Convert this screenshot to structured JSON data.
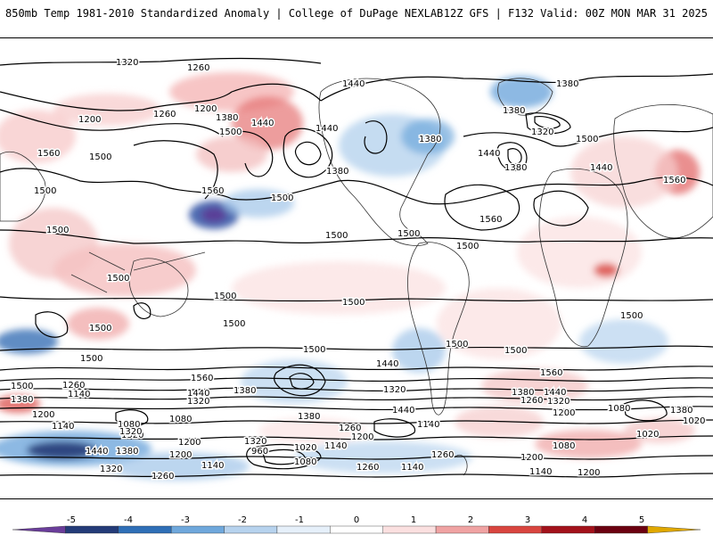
{
  "header": {
    "title_left": "850mb Temp 1981-2010 Standardized Anomaly | College of DuPage NEXLAB",
    "title_right": "12Z GFS | F132 Valid: 00Z MON MAR 31 2025"
  },
  "colorbar": {
    "ticks": [
      "-5",
      "-4",
      "-3",
      "-2",
      "-1",
      "0",
      "1",
      "2",
      "3",
      "4",
      "5"
    ],
    "colors": [
      "#6a3d9a",
      "#243b78",
      "#2f6fb7",
      "#6fa8dc",
      "#b7d3ee",
      "#e6f0fa",
      "#ffffff",
      "#fbe0e0",
      "#f0a3a3",
      "#d9453f",
      "#a3121b",
      "#6b0010",
      "#e0a800"
    ]
  },
  "contour_labels": [
    {
      "text": "1320"
    },
    {
      "text": "1260"
    },
    {
      "text": "1200"
    },
    {
      "text": "1260"
    },
    {
      "text": "1200"
    },
    {
      "text": "1380"
    },
    {
      "text": "1440"
    },
    {
      "text": "1500"
    },
    {
      "text": "1560"
    },
    {
      "text": "1500"
    },
    {
      "text": "1440"
    },
    {
      "text": "1380"
    },
    {
      "text": "1440"
    },
    {
      "text": "1380"
    },
    {
      "text": "1380"
    },
    {
      "text": "1320"
    },
    {
      "text": "1380"
    },
    {
      "text": "1500"
    },
    {
      "text": "1440"
    },
    {
      "text": "1440"
    },
    {
      "text": "1380"
    },
    {
      "text": "1560"
    },
    {
      "text": "1500"
    },
    {
      "text": "1560"
    },
    {
      "text": "1500"
    },
    {
      "text": "1500"
    },
    {
      "text": "1560"
    },
    {
      "text": "1500"
    },
    {
      "text": "1500"
    },
    {
      "text": "1500"
    },
    {
      "text": "1500"
    },
    {
      "text": "1500"
    },
    {
      "text": "1500"
    },
    {
      "text": "1500"
    },
    {
      "text": "1500"
    },
    {
      "text": "1500"
    },
    {
      "text": "1500"
    },
    {
      "text": "1500"
    },
    {
      "text": "1500"
    },
    {
      "text": "1560"
    },
    {
      "text": "1500"
    },
    {
      "text": "1440"
    },
    {
      "text": "1560"
    },
    {
      "text": "1500"
    },
    {
      "text": "1260"
    },
    {
      "text": "1140"
    },
    {
      "text": "1380"
    },
    {
      "text": "1440"
    },
    {
      "text": "1320"
    },
    {
      "text": "1380"
    },
    {
      "text": "1320"
    },
    {
      "text": "1380"
    },
    {
      "text": "1440"
    },
    {
      "text": "1260"
    },
    {
      "text": "1320"
    },
    {
      "text": "1200"
    },
    {
      "text": "1380"
    },
    {
      "text": "1200"
    },
    {
      "text": "1080"
    },
    {
      "text": "1080"
    },
    {
      "text": "1140"
    },
    {
      "text": "1320"
    },
    {
      "text": "1260"
    },
    {
      "text": "1140"
    },
    {
      "text": "1200"
    },
    {
      "text": "1080"
    },
    {
      "text": "1020"
    },
    {
      "text": "1020"
    },
    {
      "text": "1140"
    },
    {
      "text": "960"
    },
    {
      "text": "1020"
    },
    {
      "text": "1080"
    },
    {
      "text": "1140"
    },
    {
      "text": "1200"
    },
    {
      "text": "1260"
    },
    {
      "text": "1080"
    },
    {
      "text": "1140"
    },
    {
      "text": "1200"
    },
    {
      "text": "1320"
    },
    {
      "text": "1260"
    },
    {
      "text": "1380"
    },
    {
      "text": "1440"
    },
    {
      "text": "1380"
    },
    {
      "text": "1440"
    },
    {
      "text": "1320"
    },
    {
      "text": "1200"
    },
    {
      "text": "1140"
    },
    {
      "text": "1200"
    },
    {
      "text": "1260"
    },
    {
      "text": "1320"
    }
  ]
}
